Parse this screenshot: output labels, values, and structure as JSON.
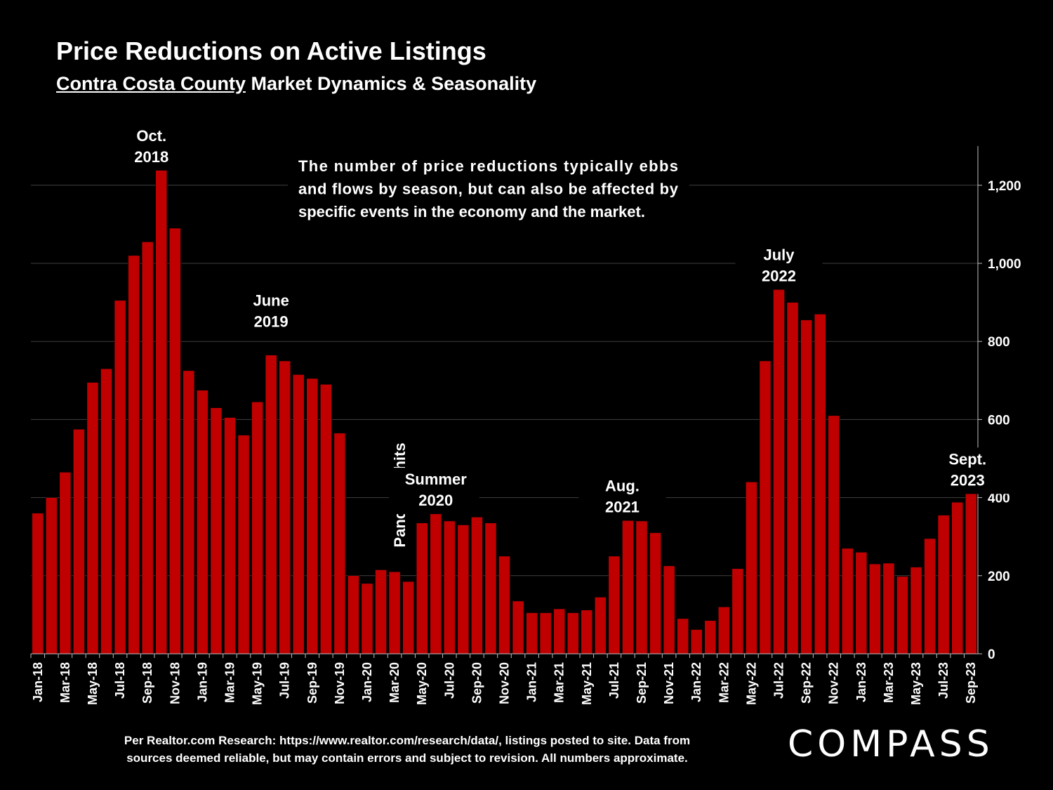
{
  "title": "Price Reductions on Active Listings",
  "subtitle_link": "Contra Costa County",
  "subtitle_rest": " Market Dynamics & Seasonality",
  "annotation": [
    "The number of price reductions typically ebbs",
    "and flows by season, but can also be affected by",
    "specific events in the economy and the market."
  ],
  "footnote": [
    "Per Realtor.com Research:  https://www.realtor.com/research/data/, listings posted to site. Data from",
    "sources deemed reliable, but may contain errors and subject to revision. All numbers approximate."
  ],
  "logo": "COMPASS",
  "chart_data": {
    "type": "bar",
    "title": "Price Reductions on Active Listings",
    "bar_color": "#C00000",
    "ylim": [
      0,
      1300
    ],
    "yticks": [
      0,
      200,
      400,
      600,
      800,
      1000,
      1200
    ],
    "ytick_labels": [
      "0",
      "200",
      "400",
      "600",
      "800",
      "1,000",
      "1,200"
    ],
    "grid": true,
    "y_axis_position": "right",
    "categories": [
      "Jan-18",
      "Feb-18",
      "Mar-18",
      "Apr-18",
      "May-18",
      "Jun-18",
      "Jul-18",
      "Aug-18",
      "Sep-18",
      "Oct-18",
      "Nov-18",
      "Dec-18",
      "Jan-19",
      "Feb-19",
      "Mar-19",
      "Apr-19",
      "May-19",
      "Jun-19",
      "Jul-19",
      "Aug-19",
      "Sep-19",
      "Oct-19",
      "Nov-19",
      "Dec-19",
      "Jan-20",
      "Feb-20",
      "Mar-20",
      "Apr-20",
      "May-20",
      "Jun-20",
      "Jul-20",
      "Aug-20",
      "Sep-20",
      "Oct-20",
      "Nov-20",
      "Dec-20",
      "Jan-21",
      "Feb-21",
      "Mar-21",
      "Apr-21",
      "May-21",
      "Jun-21",
      "Jul-21",
      "Aug-21",
      "Sep-21",
      "Oct-21",
      "Nov-21",
      "Dec-21",
      "Jan-22",
      "Feb-22",
      "Mar-22",
      "Apr-22",
      "May-22",
      "Jun-22",
      "Jul-22",
      "Aug-22",
      "Sep-22",
      "Oct-22",
      "Nov-22",
      "Dec-22",
      "Jan-23",
      "Feb-23",
      "Mar-23",
      "Apr-23",
      "May-23",
      "Jun-23",
      "Jul-23",
      "Aug-23",
      "Sep-23"
    ],
    "shown_xticks": [
      "Jan-18",
      "Mar-18",
      "May-18",
      "Jul-18",
      "Sep-18",
      "Nov-18",
      "Jan-19",
      "Mar-19",
      "May-19",
      "Jul-19",
      "Sep-19",
      "Nov-19",
      "Jan-20",
      "Mar-20",
      "May-20",
      "Jul-20",
      "Sep-20",
      "Nov-20",
      "Jan-21",
      "Mar-21",
      "May-21",
      "Jul-21",
      "Sep-21",
      "Nov-21",
      "Jan-22",
      "Mar-22",
      "May-22",
      "Jul-22",
      "Sep-22",
      "Nov-22",
      "Jan-23",
      "Mar-23",
      "May-23",
      "Jul-23",
      "Sep-23"
    ],
    "values": [
      360,
      400,
      465,
      575,
      695,
      730,
      905,
      1020,
      1055,
      1245,
      1090,
      725,
      675,
      630,
      605,
      560,
      645,
      765,
      750,
      715,
      705,
      690,
      565,
      200,
      180,
      215,
      210,
      185,
      335,
      365,
      340,
      330,
      350,
      335,
      250,
      135,
      105,
      105,
      115,
      105,
      112,
      145,
      250,
      348,
      340,
      310,
      225,
      90,
      62,
      85,
      120,
      218,
      440,
      750,
      945,
      900,
      855,
      870,
      610,
      270,
      260,
      230,
      232,
      198,
      222,
      295,
      355,
      388,
      413
    ],
    "peak_labels": [
      {
        "category": "Oct-18",
        "lines": [
          "Oct.",
          "2018"
        ]
      },
      {
        "category": "Jun-19",
        "lines": [
          "June",
          "2019"
        ]
      },
      {
        "category": "Mar-20",
        "lines": [
          "Pandemic hits"
        ],
        "vertical": true
      },
      {
        "category": "Jun-20",
        "lines": [
          "Summer",
          "2020"
        ]
      },
      {
        "category": "Aug-21",
        "lines": [
          "Aug.",
          "2021"
        ]
      },
      {
        "category": "Jul-22",
        "lines": [
          "July",
          "2022"
        ]
      },
      {
        "category": "Sep-23",
        "lines": [
          "Sept.",
          "2023"
        ]
      }
    ]
  }
}
